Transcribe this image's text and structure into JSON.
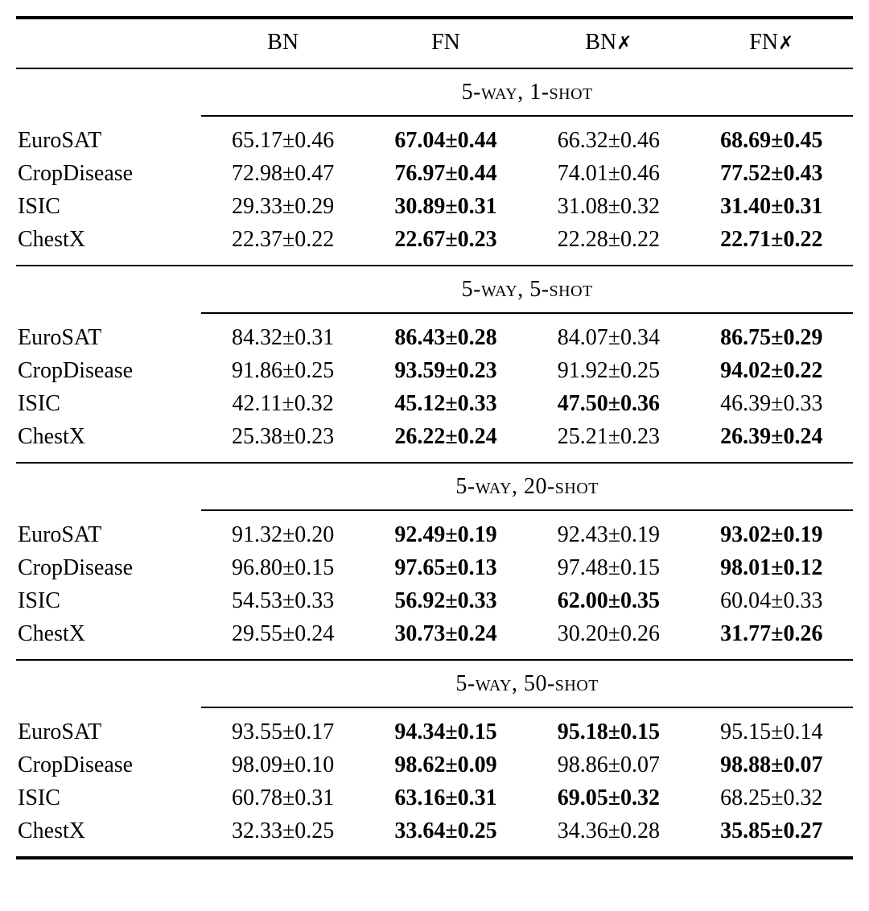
{
  "page": {
    "background": "#ffffff",
    "text_color": "#000000"
  },
  "table": {
    "column_headers": [
      {
        "label": "BN",
        "mark": ""
      },
      {
        "label": "FN",
        "mark": ""
      },
      {
        "label": "BN",
        "mark": "✗"
      },
      {
        "label": "FN",
        "mark": "✗"
      }
    ],
    "sections": [
      {
        "title": "5-way, 1-shot",
        "rows": [
          {
            "dataset": "EuroSAT",
            "cells": [
              {
                "text": "65.17±0.46",
                "bold": false
              },
              {
                "text": "67.04±0.44",
                "bold": true
              },
              {
                "text": "66.32±0.46",
                "bold": false
              },
              {
                "text": "68.69±0.45",
                "bold": true
              }
            ]
          },
          {
            "dataset": "CropDisease",
            "cells": [
              {
                "text": "72.98±0.47",
                "bold": false
              },
              {
                "text": "76.97±0.44",
                "bold": true
              },
              {
                "text": "74.01±0.46",
                "bold": false
              },
              {
                "text": "77.52±0.43",
                "bold": true
              }
            ]
          },
          {
            "dataset": "ISIC",
            "cells": [
              {
                "text": "29.33±0.29",
                "bold": false
              },
              {
                "text": "30.89±0.31",
                "bold": true
              },
              {
                "text": "31.08±0.32",
                "bold": false
              },
              {
                "text": "31.40±0.31",
                "bold": true
              }
            ]
          },
          {
            "dataset": "ChestX",
            "cells": [
              {
                "text": "22.37±0.22",
                "bold": false
              },
              {
                "text": "22.67±0.23",
                "bold": true
              },
              {
                "text": "22.28±0.22",
                "bold": false
              },
              {
                "text": "22.71±0.22",
                "bold": true
              }
            ]
          }
        ]
      },
      {
        "title": "5-way, 5-shot",
        "rows": [
          {
            "dataset": "EuroSAT",
            "cells": [
              {
                "text": "84.32±0.31",
                "bold": false
              },
              {
                "text": "86.43±0.28",
                "bold": true
              },
              {
                "text": "84.07±0.34",
                "bold": false
              },
              {
                "text": "86.75±0.29",
                "bold": true
              }
            ]
          },
          {
            "dataset": "CropDisease",
            "cells": [
              {
                "text": "91.86±0.25",
                "bold": false
              },
              {
                "text": "93.59±0.23",
                "bold": true
              },
              {
                "text": "91.92±0.25",
                "bold": false
              },
              {
                "text": "94.02±0.22",
                "bold": true
              }
            ]
          },
          {
            "dataset": "ISIC",
            "cells": [
              {
                "text": "42.11±0.32",
                "bold": false
              },
              {
                "text": "45.12±0.33",
                "bold": true
              },
              {
                "text": "47.50±0.36",
                "bold": true
              },
              {
                "text": "46.39±0.33",
                "bold": false
              }
            ]
          },
          {
            "dataset": "ChestX",
            "cells": [
              {
                "text": "25.38±0.23",
                "bold": false
              },
              {
                "text": "26.22±0.24",
                "bold": true
              },
              {
                "text": "25.21±0.23",
                "bold": false
              },
              {
                "text": "26.39±0.24",
                "bold": true
              }
            ]
          }
        ]
      },
      {
        "title": "5-way, 20-shot",
        "rows": [
          {
            "dataset": "EuroSAT",
            "cells": [
              {
                "text": "91.32±0.20",
                "bold": false
              },
              {
                "text": "92.49±0.19",
                "bold": true
              },
              {
                "text": "92.43±0.19",
                "bold": false
              },
              {
                "text": "93.02±0.19",
                "bold": true
              }
            ]
          },
          {
            "dataset": "CropDisease",
            "cells": [
              {
                "text": "96.80±0.15",
                "bold": false
              },
              {
                "text": "97.65±0.13",
                "bold": true
              },
              {
                "text": "97.48±0.15",
                "bold": false
              },
              {
                "text": "98.01±0.12",
                "bold": true
              }
            ]
          },
          {
            "dataset": "ISIC",
            "cells": [
              {
                "text": "54.53±0.33",
                "bold": false
              },
              {
                "text": "56.92±0.33",
                "bold": true
              },
              {
                "text": "62.00±0.35",
                "bold": true
              },
              {
                "text": "60.04±0.33",
                "bold": false
              }
            ]
          },
          {
            "dataset": "ChestX",
            "cells": [
              {
                "text": "29.55±0.24",
                "bold": false
              },
              {
                "text": "30.73±0.24",
                "bold": true
              },
              {
                "text": "30.20±0.26",
                "bold": false
              },
              {
                "text": "31.77±0.26",
                "bold": true
              }
            ]
          }
        ]
      },
      {
        "title": "5-way, 50-shot",
        "rows": [
          {
            "dataset": "EuroSAT",
            "cells": [
              {
                "text": "93.55±0.17",
                "bold": false
              },
              {
                "text": "94.34±0.15",
                "bold": true
              },
              {
                "text": "95.18±0.15",
                "bold": true
              },
              {
                "text": "95.15±0.14",
                "bold": false
              }
            ]
          },
          {
            "dataset": "CropDisease",
            "cells": [
              {
                "text": "98.09±0.10",
                "bold": false
              },
              {
                "text": "98.62±0.09",
                "bold": true
              },
              {
                "text": "98.86±0.07",
                "bold": false
              },
              {
                "text": "98.88±0.07",
                "bold": true
              }
            ]
          },
          {
            "dataset": "ISIC",
            "cells": [
              {
                "text": "60.78±0.31",
                "bold": false
              },
              {
                "text": "63.16±0.31",
                "bold": true
              },
              {
                "text": "69.05±0.32",
                "bold": true
              },
              {
                "text": "68.25±0.32",
                "bold": false
              }
            ]
          },
          {
            "dataset": "ChestX",
            "cells": [
              {
                "text": "32.33±0.25",
                "bold": false
              },
              {
                "text": "33.64±0.25",
                "bold": true
              },
              {
                "text": "34.36±0.28",
                "bold": false
              },
              {
                "text": "35.85±0.27",
                "bold": true
              }
            ]
          }
        ]
      }
    ]
  }
}
